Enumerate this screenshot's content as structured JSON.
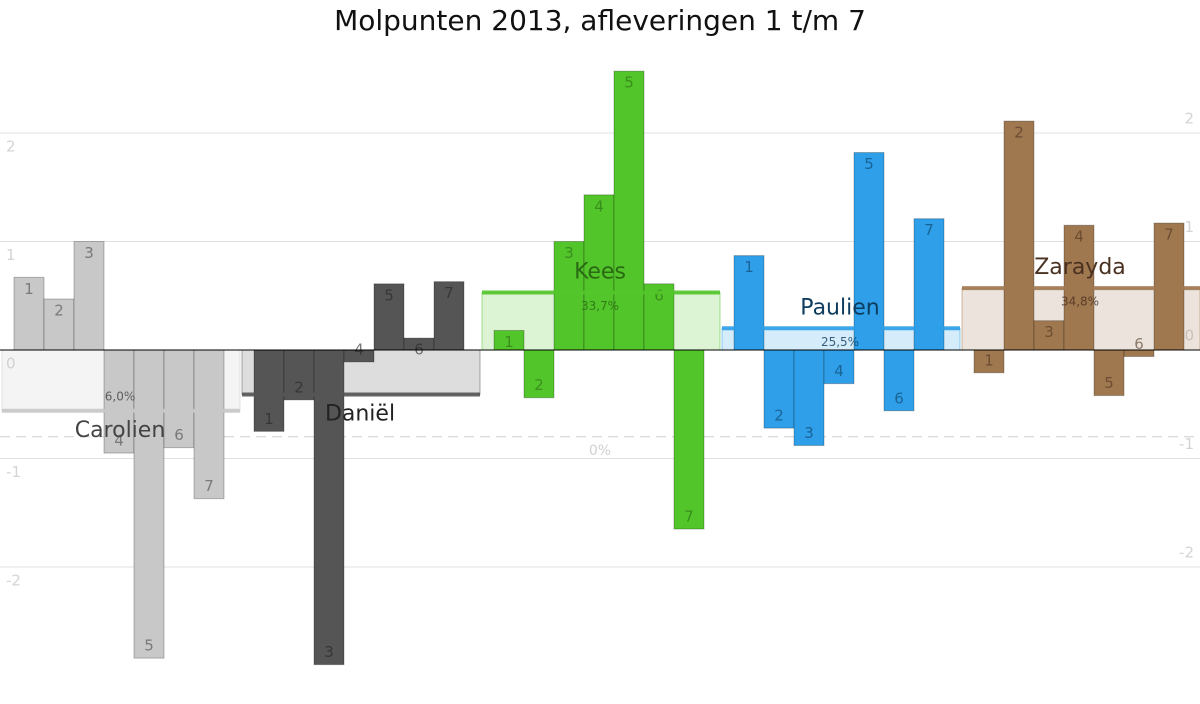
{
  "chart_data": {
    "type": "bar",
    "title": "Molpunten 2013, afleveringen 1 t/m 7",
    "categories": [
      "1",
      "2",
      "3",
      "4",
      "5",
      "6",
      "7"
    ],
    "ylim": [
      -3,
      3
    ],
    "yticks": [
      -2,
      -1,
      0,
      1,
      2
    ],
    "grid": true,
    "threshold": {
      "value": -0.8,
      "label": "0%"
    },
    "series": [
      {
        "name": "Carolien",
        "color": "#c8c8c8",
        "text_color": "#444444",
        "values": [
          0.67,
          0.47,
          1.0,
          -0.95,
          -2.84,
          -0.9,
          -1.37
        ],
        "mean": -0.56,
        "share": {
          "value": 6.0,
          "label": "6,0%"
        }
      },
      {
        "name": "Daniël",
        "color": "#555555",
        "text_color": "#222222",
        "values": [
          -0.75,
          -0.46,
          -2.9,
          -0.11,
          0.61,
          0.11,
          0.63
        ],
        "mean": -0.41
      },
      {
        "name": "Kees",
        "color": "#52c52a",
        "text_color": "#2a6a14",
        "values": [
          0.18,
          -0.44,
          1.0,
          1.43,
          2.57,
          0.61,
          -1.65
        ],
        "mean": 0.53,
        "share": {
          "value": 33.7,
          "label": "33,7%"
        }
      },
      {
        "name": "Paulien",
        "color": "#2e9fe8",
        "text_color": "#0d3c5e",
        "values": [
          0.87,
          -0.72,
          -0.88,
          -0.31,
          1.82,
          -0.56,
          1.21
        ],
        "mean": 0.2,
        "share": {
          "value": 25.5,
          "label": "25,5%"
        }
      },
      {
        "name": "Zarayda",
        "color": "#a07850",
        "text_color": "#4a3020",
        "values": [
          -0.21,
          2.11,
          0.27,
          1.15,
          -0.42,
          -0.06,
          1.17
        ],
        "mean": 0.57,
        "share": {
          "value": 34.8,
          "label": "34,8%"
        }
      }
    ]
  }
}
